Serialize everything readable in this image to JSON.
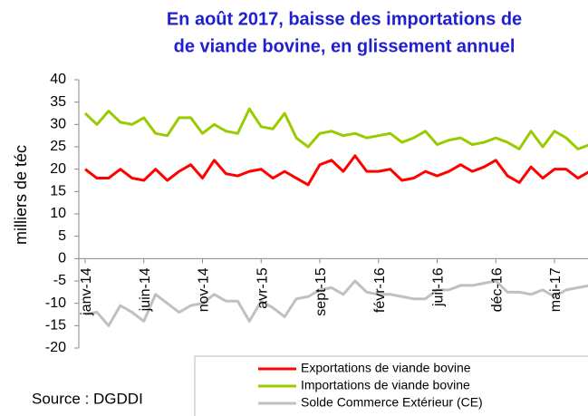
{
  "chart_data": {
    "type": "line",
    "title": [
      "En août 2017, baisse des importations de",
      "de viande bovine, en glissement annuel"
    ],
    "y_label": "milliers de téc",
    "source": "Source : DGDDI",
    "categories": [
      "janv-14",
      null,
      null,
      null,
      null,
      "juin-14",
      null,
      null,
      null,
      null,
      "nov-14",
      null,
      null,
      null,
      null,
      "avr-15",
      null,
      null,
      null,
      null,
      "sept-15",
      null,
      null,
      null,
      null,
      "févr-16",
      null,
      null,
      null,
      null,
      "juil-16",
      null,
      null,
      null,
      null,
      "déc-16",
      null,
      null,
      null,
      null,
      "mai-17",
      null,
      null,
      null
    ],
    "ylim": [
      -20,
      40
    ],
    "yticks": [
      -20,
      -15,
      -10,
      -5,
      0,
      5,
      10,
      15,
      20,
      25,
      30,
      35,
      40
    ],
    "series": [
      {
        "name": "Exportations de viande bovine",
        "color": "#ff0000",
        "values": [
          20,
          18,
          18,
          20,
          18,
          17.5,
          20,
          17.5,
          19.5,
          21,
          18,
          22,
          19,
          18.5,
          19.5,
          20,
          18,
          19.5,
          18,
          16.5,
          21,
          22,
          19.5,
          23,
          19.5,
          19.5,
          20,
          17.5,
          18,
          19.5,
          18.5,
          19.5,
          21,
          19.5,
          20.5,
          22,
          18.5,
          17,
          20.5,
          18,
          20,
          20,
          18,
          19.5
        ]
      },
      {
        "name": "Importations de viande bovine",
        "color": "#99cc00",
        "values": [
          32.5,
          30,
          33,
          30.5,
          30,
          31.5,
          28,
          27.5,
          31.5,
          31.5,
          28,
          30,
          28.5,
          28,
          33.5,
          29.5,
          29,
          32.5,
          27,
          25,
          28,
          28.5,
          27.5,
          28,
          27,
          27.5,
          28,
          26,
          27,
          28.5,
          25.5,
          26.5,
          27,
          25.5,
          26,
          27,
          26,
          24.5,
          28.5,
          25,
          28.5,
          27,
          24.5,
          25.5
        ]
      },
      {
        "name": "Solde Commerce Extérieur (CE)",
        "color": "#c0c0c0",
        "values": [
          -12.5,
          -12,
          -15,
          -10.5,
          -12,
          -14,
          -8,
          -10,
          -12,
          -10.5,
          -10,
          -8,
          -9.5,
          -9.5,
          -14,
          -9.5,
          -11,
          -13,
          -9,
          -8.5,
          -7,
          -6.5,
          -8,
          -5,
          -7.5,
          -8,
          -8,
          -8.5,
          -9,
          -9,
          -7,
          -7,
          -6,
          -6,
          -5.5,
          -5,
          -7.5,
          -7.5,
          -8,
          -7,
          -8.5,
          -7,
          -6.5,
          -6
        ]
      }
    ]
  }
}
